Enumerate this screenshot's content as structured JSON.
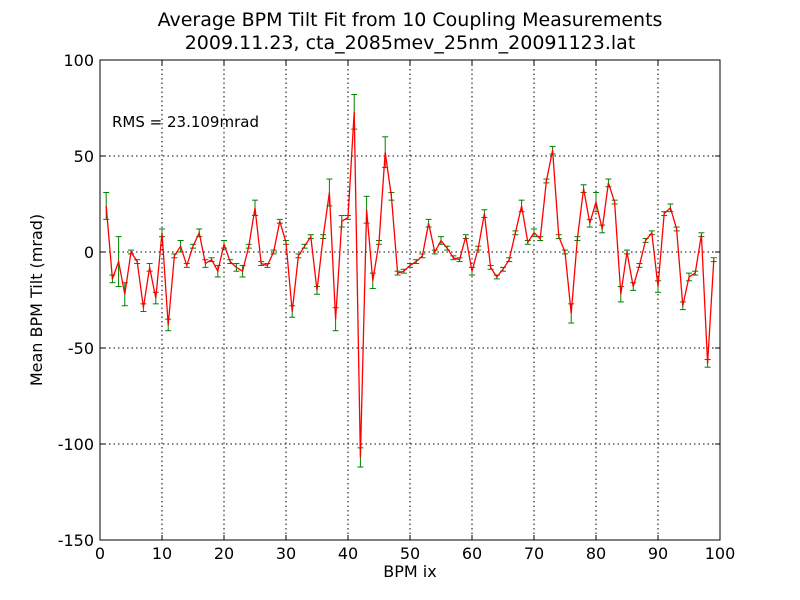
{
  "chart_data": {
    "type": "line",
    "title": "Average BPM Tilt Fit from 10 Coupling Measurements",
    "subtitle": "2009.11.23, cta_2085mev_25nm_20091123.lat",
    "xlabel": "BPM ix",
    "ylabel": "Mean BPM Tilt (mrad)",
    "xlim": [
      0,
      100
    ],
    "ylim": [
      -150,
      100
    ],
    "xticks": [
      0,
      10,
      20,
      30,
      40,
      50,
      60,
      70,
      80,
      90,
      100
    ],
    "yticks": [
      -150,
      -100,
      -50,
      0,
      50,
      100
    ],
    "grid": true,
    "annotation": "RMS = 23.109mrad",
    "line_color": "#ff0000",
    "errorbar_color": "#008000",
    "x": [
      1,
      2,
      3,
      4,
      5,
      6,
      7,
      8,
      9,
      10,
      11,
      12,
      13,
      14,
      15,
      16,
      17,
      18,
      19,
      20,
      21,
      22,
      23,
      24,
      25,
      26,
      27,
      28,
      29,
      30,
      31,
      32,
      33,
      34,
      35,
      36,
      37,
      38,
      39,
      40,
      41,
      42,
      43,
      44,
      45,
      46,
      47,
      48,
      49,
      50,
      51,
      52,
      53,
      54,
      55,
      56,
      57,
      58,
      59,
      60,
      61,
      62,
      63,
      64,
      65,
      66,
      67,
      68,
      69,
      70,
      71,
      72,
      73,
      74,
      75,
      76,
      77,
      78,
      79,
      80,
      81,
      82,
      83,
      84,
      85,
      86,
      87,
      88,
      89,
      90,
      91,
      92,
      93,
      94,
      95,
      96,
      97,
      98,
      99
    ],
    "y": [
      24,
      -14,
      -5,
      -22,
      0,
      -5,
      -29,
      -8,
      -24,
      10,
      -38,
      -2,
      3,
      -7,
      3,
      10,
      -6,
      -4,
      -10,
      4,
      -5,
      -8,
      -10,
      3,
      23,
      -6,
      -7,
      0,
      16,
      5,
      -31,
      -2,
      3,
      8,
      -20,
      8,
      31,
      -35,
      16,
      18,
      73,
      -107,
      22,
      -15,
      5,
      52,
      29,
      -11,
      -10,
      -7,
      -5,
      -2,
      15,
      0,
      6,
      2,
      -3,
      -4,
      8,
      -10,
      2,
      20,
      -8,
      -13,
      -9,
      -4,
      10,
      24,
      5,
      10,
      7,
      37,
      53,
      8,
      0,
      -32,
      7,
      33,
      15,
      26,
      12,
      36,
      26,
      -22,
      0,
      -18,
      -7,
      6,
      10,
      -18,
      20,
      23,
      12,
      -28,
      -13,
      -11,
      9,
      -58,
      -4
    ],
    "err": [
      7,
      2,
      13,
      6,
      1,
      1,
      2,
      2,
      3,
      2,
      3,
      1,
      3,
      1,
      1,
      2,
      2,
      1,
      3,
      2,
      1,
      2,
      3,
      1,
      4,
      1,
      1,
      1,
      1,
      1,
      3,
      1,
      1,
      1,
      2,
      1,
      7,
      6,
      3,
      1,
      9,
      5,
      7,
      4,
      1,
      8,
      2,
      1,
      1,
      1,
      1,
      1,
      2,
      1,
      2,
      1,
      1,
      1,
      1,
      2,
      1,
      2,
      1,
      1,
      1,
      1,
      1,
      3,
      1,
      2,
      1,
      1,
      2,
      1,
      1,
      5,
      1,
      2,
      2,
      5,
      2,
      2,
      1,
      4,
      1,
      2,
      1,
      1,
      1,
      3,
      1,
      2,
      1,
      2,
      2,
      1,
      1,
      2,
      1
    ]
  }
}
